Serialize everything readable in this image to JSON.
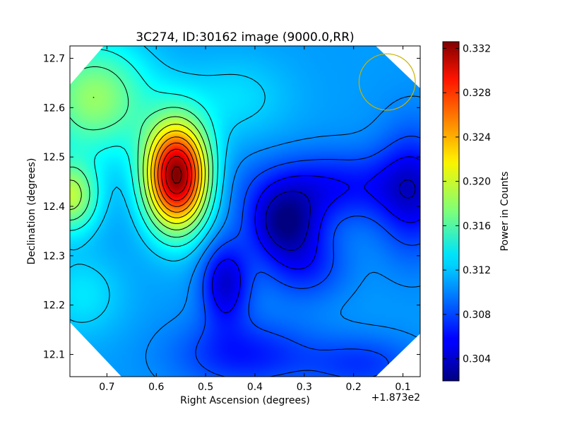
{
  "colors": {
    "colormap": "jet",
    "contour_line": "#000000",
    "beam_circle": "#c8b400"
  },
  "chart_data": {
    "type": "heatmap",
    "title": "3C274, ID:30162 image (9000.0,RR)",
    "xlabel": "Right Ascension (degrees)",
    "ylabel": "Declination (degrees)",
    "x_offset_label": "+1.873e2",
    "x_ticks": [
      "0.7",
      "0.6",
      "0.5",
      "0.4",
      "0.3",
      "0.2",
      "0.1"
    ],
    "y_ticks": [
      "12.1",
      "12.2",
      "12.3",
      "12.4",
      "12.5",
      "12.6",
      "12.7"
    ],
    "xlim": [
      0.775,
      0.065
    ],
    "ylim": [
      12.055,
      12.725
    ],
    "grid": false,
    "contours": true,
    "colorbar": {
      "label": "Power in Counts",
      "vmin": 0.302,
      "vmax": 0.3326,
      "ticks": [
        "0.304",
        "0.308",
        "0.312",
        "0.316",
        "0.320",
        "0.324",
        "0.328",
        "0.332"
      ]
    },
    "background_level": 0.3105,
    "features": [
      {
        "ra": 0.558,
        "dec": 12.462,
        "peak": 0.3326,
        "sigma_ra": 0.045,
        "sigma_dec": 0.075
      },
      {
        "ra": 0.725,
        "dec": 12.62,
        "peak": 0.318,
        "sigma_ra": 0.08,
        "sigma_dec": 0.08
      },
      {
        "ra": 0.775,
        "dec": 12.42,
        "peak": 0.319,
        "sigma_ra": 0.04,
        "sigma_dec": 0.05
      },
      {
        "ra": 0.44,
        "dec": 12.62,
        "peak": 0.3125,
        "sigma_ra": 0.08,
        "sigma_dec": 0.06
      },
      {
        "ra": 0.75,
        "dec": 12.22,
        "peak": 0.3128,
        "sigma_ra": 0.06,
        "sigma_dec": 0.06
      },
      {
        "ra": 0.34,
        "dec": 12.365,
        "peak": 0.3035,
        "sigma_ra": 0.05,
        "sigma_dec": 0.05
      },
      {
        "ra": 0.46,
        "dec": 12.245,
        "peak": 0.3045,
        "sigma_ra": 0.035,
        "sigma_dec": 0.06
      },
      {
        "ra": 0.25,
        "dec": 12.44,
        "peak": 0.306,
        "sigma_ra": 0.12,
        "sigma_dec": 0.05
      },
      {
        "ra": 0.08,
        "dec": 12.43,
        "peak": 0.3055,
        "sigma_ra": 0.05,
        "sigma_dec": 0.09
      },
      {
        "ra": 0.42,
        "dec": 12.1,
        "peak": 0.3065,
        "sigma_ra": 0.1,
        "sigma_dec": 0.05
      },
      {
        "ra": 0.18,
        "dec": 12.08,
        "peak": 0.3075,
        "sigma_ra": 0.08,
        "sigma_dec": 0.04
      },
      {
        "ra": 0.3,
        "dec": 12.28,
        "peak": 0.307,
        "sigma_ra": 0.06,
        "sigma_dec": 0.05
      }
    ],
    "beam": {
      "ra": 0.132,
      "dec": 12.652,
      "radius_deg": 0.057
    }
  }
}
